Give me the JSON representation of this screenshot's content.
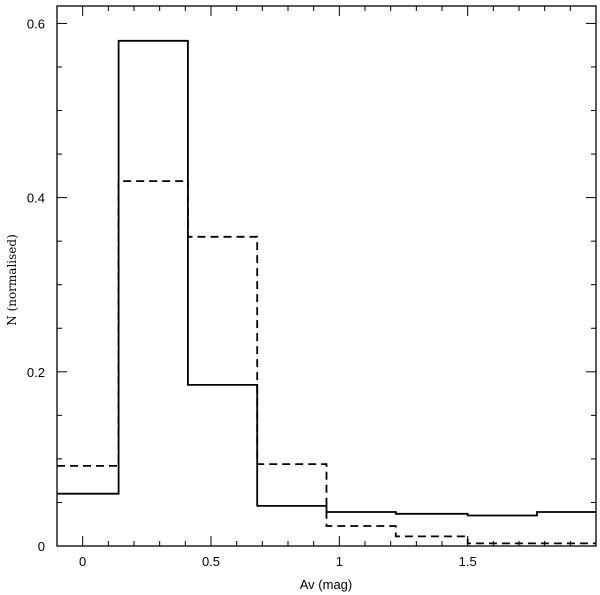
{
  "chart_data": {
    "type": "histogram",
    "xlabel": "Av (mag)",
    "ylabel": "N (normalised)",
    "xlim": [
      -0.1,
      2.0
    ],
    "ylim": [
      0,
      0.62
    ],
    "x_ticks": [
      {
        "value": 0,
        "label": "0"
      },
      {
        "value": 0.5,
        "label": "0.5"
      },
      {
        "value": 1,
        "label": "1"
      },
      {
        "value": 1.5,
        "label": "1.5"
      }
    ],
    "y_ticks": [
      {
        "value": 0,
        "label": "0"
      },
      {
        "value": 0.2,
        "label": "0.2"
      },
      {
        "value": 0.4,
        "label": "0.4"
      },
      {
        "value": 0.6,
        "label": "0.6"
      }
    ],
    "bin_edges": [
      -0.1,
      0.14,
      0.41,
      0.68,
      0.95,
      1.22,
      1.5,
      1.77,
      2.0
    ],
    "series": [
      {
        "style": "solid",
        "values": [
          0.06,
          0.58,
          0.185,
          0.046,
          0.039,
          0.037,
          0.035,
          0.039
        ]
      },
      {
        "style": "dashed",
        "values": [
          0.092,
          0.419,
          0.355,
          0.094,
          0.023,
          0.011,
          0.003,
          0.003
        ]
      }
    ],
    "grid": false,
    "legend": "none"
  }
}
